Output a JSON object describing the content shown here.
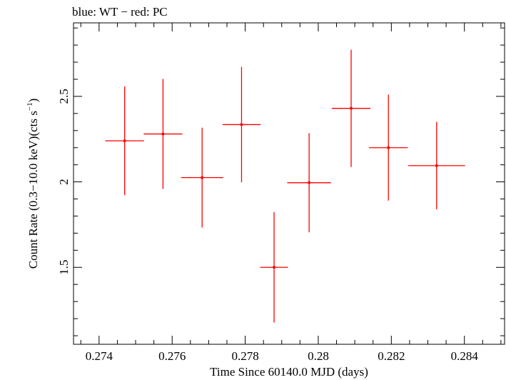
{
  "chart_data": {
    "type": "scatter",
    "title": "blue: WT − red: PC",
    "xlabel": "Time Since 60140.0 MJD (days)",
    "ylabel_main": "Count Rate (0.3−10.0 keV)(cts s",
    "ylabel_sup": "−1",
    "ylabel_close": ")",
    "xlim": [
      0.2733,
      0.2851
    ],
    "ylim": [
      1.05,
      2.93
    ],
    "xticks": [
      0.274,
      0.276,
      0.278,
      0.28,
      0.282,
      0.284
    ],
    "xtick_labels": [
      "0.274",
      "0.276",
      "0.278",
      "0.28",
      "0.282",
      "0.284"
    ],
    "yticks": [
      1.5,
      2,
      2.5
    ],
    "ytick_labels": [
      "1.5",
      "2",
      "2.5"
    ],
    "grid": false,
    "series": [
      {
        "color": "#ff0000",
        "points": [
          {
            "x": 0.2747,
            "xerr": 0.00053,
            "y": 2.24,
            "yerr": 0.318
          },
          {
            "x": 0.27575,
            "xerr": 0.00053,
            "y": 2.28,
            "yerr": 0.322
          },
          {
            "x": 0.27682,
            "xerr": 0.00058,
            "y": 2.025,
            "yerr": 0.292
          },
          {
            "x": 0.2779,
            "xerr": 0.00052,
            "y": 2.335,
            "yerr": 0.337
          },
          {
            "x": 0.27879,
            "xerr": 0.00038,
            "y": 1.5,
            "yerr": 0.323
          },
          {
            "x": 0.27975,
            "xerr": 0.0006,
            "y": 1.995,
            "yerr": 0.29
          },
          {
            "x": 0.2809,
            "xerr": 0.00053,
            "y": 2.43,
            "yerr": 0.343
          },
          {
            "x": 0.28192,
            "xerr": 0.00053,
            "y": 2.2,
            "yerr": 0.31
          },
          {
            "x": 0.28324,
            "xerr": 0.00078,
            "y": 2.095,
            "yerr": 0.256
          }
        ]
      }
    ]
  }
}
